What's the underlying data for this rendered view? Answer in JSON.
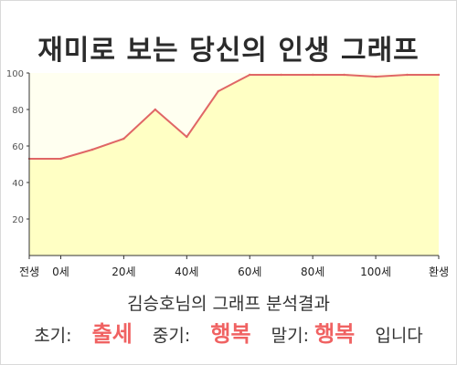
{
  "title": "재미로 보는 당신의 인생 그래프",
  "analysis_title": "김승호님의 그래프 분석결과",
  "result": {
    "early_label": "초기:",
    "early_value": "출세",
    "mid_label": "중기:",
    "mid_value": "행복",
    "late_label": "말기:",
    "late_value": "행복",
    "suffix": "입니다"
  },
  "colors": {
    "line": "#e06666",
    "fill": "#ffffc4",
    "plot_background": "#fffff0",
    "highlight": "#f06262"
  },
  "chart_data": {
    "type": "area",
    "title": "재미로 보는 당신의 인생 그래프",
    "xlabel": "",
    "ylabel": "",
    "x_ticks": [
      {
        "x": -10,
        "label": "전생"
      },
      {
        "x": 0,
        "label": "0세"
      },
      {
        "x": 20,
        "label": "20세"
      },
      {
        "x": 40,
        "label": "40세"
      },
      {
        "x": 60,
        "label": "60세"
      },
      {
        "x": 80,
        "label": "80세"
      },
      {
        "x": 100,
        "label": "100세"
      },
      {
        "x": 120,
        "label": "환생"
      }
    ],
    "y_ticks": [
      20,
      40,
      60,
      80,
      100
    ],
    "xlim": [
      -10,
      120
    ],
    "ylim": [
      0,
      100
    ],
    "grid": false,
    "series": [
      {
        "x": [
          -10,
          0,
          10,
          20,
          30,
          40,
          50,
          60,
          70,
          80,
          90,
          100,
          110,
          120
        ],
        "values": [
          53,
          53,
          58,
          64,
          80,
          65,
          90,
          99,
          99,
          99,
          99,
          98,
          99,
          99
        ]
      }
    ]
  }
}
